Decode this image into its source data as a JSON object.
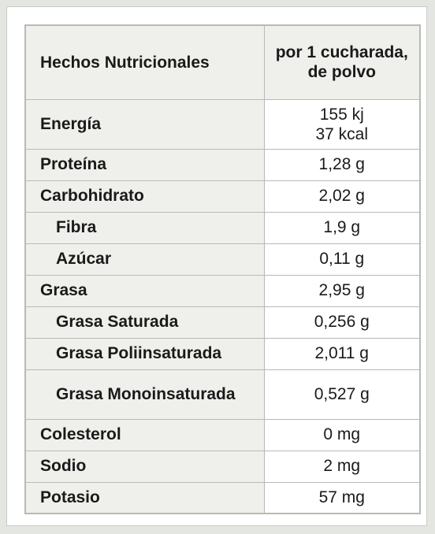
{
  "header": {
    "name": "Hechos Nutricionales",
    "serving": "por 1 cucharada, de polvo"
  },
  "rows": [
    {
      "name": "Energía",
      "value_line1": "155 kj",
      "value_line2": "37 kcal"
    },
    {
      "name": "Proteína",
      "value": "1,28 g"
    },
    {
      "name": "Carbohidrato",
      "value": "2,02 g"
    },
    {
      "name": "Fibra",
      "value": "1,9 g"
    },
    {
      "name": "Azúcar",
      "value": "0,11 g"
    },
    {
      "name": "Grasa",
      "value": "2,95 g"
    },
    {
      "name": "Grasa Saturada",
      "value": "0,256 g"
    },
    {
      "name": "Grasa Poliinsaturada",
      "value": "2,011 g"
    },
    {
      "name": "Grasa Monoinsaturada",
      "value": "0,527 g"
    },
    {
      "name": "Colesterol",
      "value": "0 mg"
    },
    {
      "name": "Sodio",
      "value": "2 mg"
    },
    {
      "name": "Potasio",
      "value": "57 mg"
    }
  ]
}
